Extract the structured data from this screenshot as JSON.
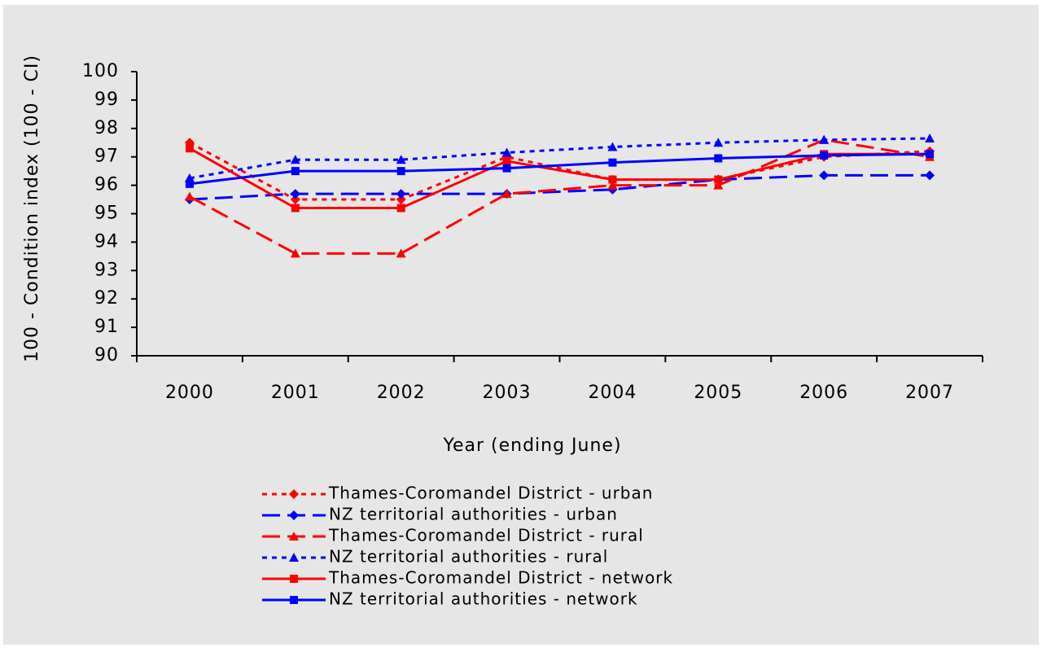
{
  "chart_data": {
    "type": "line",
    "x_label": "Year (ending June)",
    "y_label": "100 - Condition index (100 - CI)",
    "categories": [
      "2000",
      "2001",
      "2002",
      "2003",
      "2004",
      "2005",
      "2006",
      "2007"
    ],
    "ylim": [
      90,
      100
    ],
    "yticks": [
      90,
      91,
      92,
      93,
      94,
      95,
      96,
      97,
      98,
      99,
      100
    ],
    "legend": "bottom",
    "series": [
      {
        "name": "Thames-Coromandel District - urban",
        "color": "#ff0000",
        "dash": "dotted",
        "marker": "diamond",
        "values": [
          97.5,
          95.5,
          95.5,
          97.0,
          96.2,
          96.2,
          97.0,
          97.2
        ]
      },
      {
        "name": "NZ territorial authorities - urban",
        "color": "#0000ff",
        "dash": "dashed",
        "marker": "diamond",
        "values": [
          95.5,
          95.7,
          95.7,
          95.7,
          95.85,
          96.2,
          96.35,
          96.35
        ]
      },
      {
        "name": "Thames-Coromandel District - rural",
        "color": "#ff0000",
        "dash": "dashed",
        "marker": "triangle",
        "values": [
          95.6,
          93.6,
          93.6,
          95.7,
          96.0,
          96.0,
          97.6,
          97.0
        ]
      },
      {
        "name": "NZ territorial authorities - rural",
        "color": "#0000ff",
        "dash": "dotted",
        "marker": "triangle",
        "values": [
          96.25,
          96.9,
          96.9,
          97.15,
          97.35,
          97.5,
          97.6,
          97.65
        ]
      },
      {
        "name": "Thames-Coromandel District - network",
        "color": "#ff0000",
        "dash": "solid",
        "marker": "square",
        "values": [
          97.3,
          95.2,
          95.2,
          96.85,
          96.2,
          96.2,
          97.1,
          97.1
        ]
      },
      {
        "name": "NZ territorial authorities - network",
        "color": "#0000ff",
        "dash": "solid",
        "marker": "square",
        "values": [
          96.05,
          96.5,
          96.5,
          96.6,
          96.8,
          96.95,
          97.05,
          97.1
        ]
      }
    ]
  }
}
